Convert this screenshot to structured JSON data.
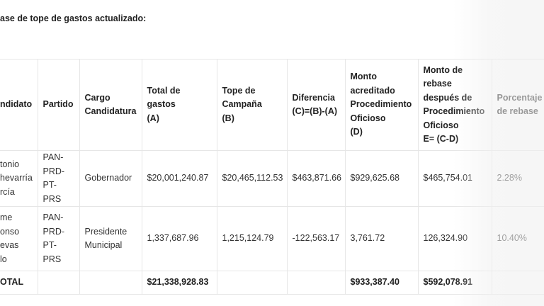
{
  "header": {
    "title": "ase de tope de gastos actualizado:"
  },
  "table": {
    "headers": [
      "ndidato",
      "Partido",
      "Cargo\nCandidatura",
      "Total de\ngastos\n(A)",
      "Tope de\nCampaña\n(B)",
      "Diferencia\n(C)=(B)-(A)",
      "Monto\nacreditado\nProcedimiento\nOficioso\n(D)",
      "Monto de\nrebase\ndespués de\nProcedimiento\nOficioso\nE= (C-D)",
      "Porcentaje\nde rebase"
    ],
    "rows": [
      [
        "tonio\nhevarría\nrcía",
        "PAN-\nPRD-\nPT-PRS",
        "Gobernador",
        "$20,001,240.87",
        "$20,465,112.53",
        "$463,871.66",
        "$929,625.68",
        "$465,754.01",
        "2.28%"
      ],
      [
        "me\nonso\nevas\nlo",
        "PAN-\nPRD-\nPT-PRS",
        "Presidente\nMunicipal",
        "1,337,687.96",
        "1,215,124.79",
        "-122,563.17",
        "3,761.72",
        "126,324.90",
        "10.40%"
      ]
    ],
    "total": {
      "label": "OTAL",
      "total_gastos": "$21,338,928.83",
      "monto_acreditado": "$933,387.40",
      "monto_rebase": "$592,078.91"
    }
  }
}
